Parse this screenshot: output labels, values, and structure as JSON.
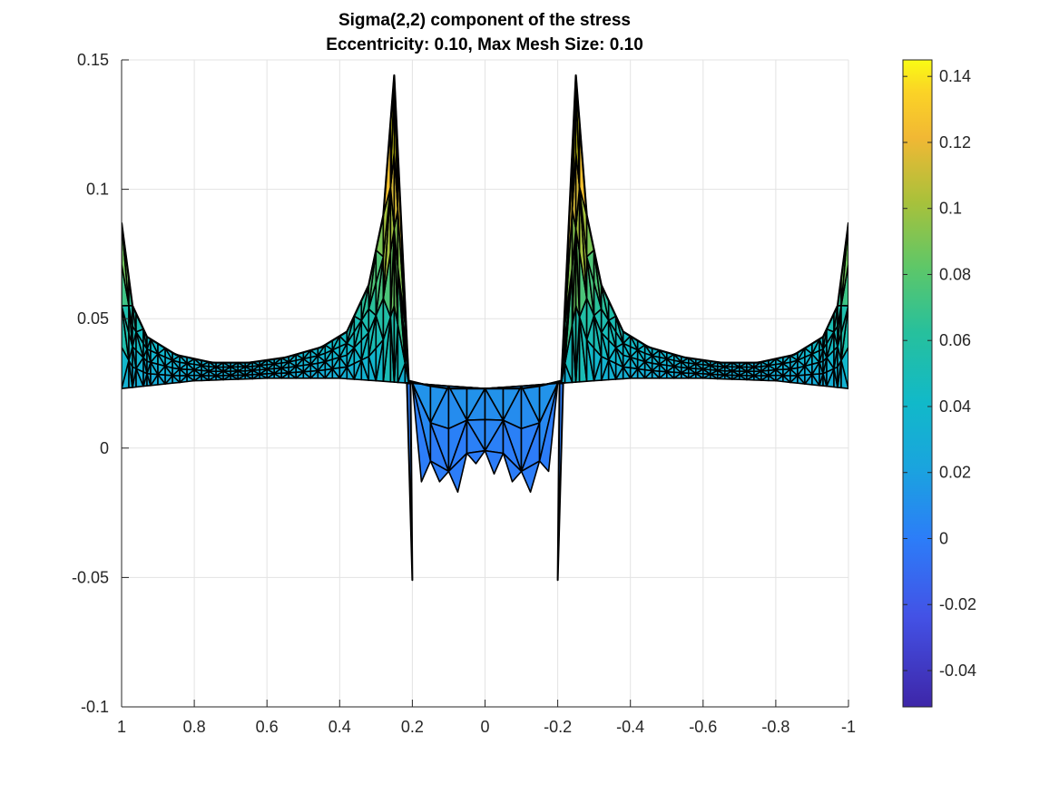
{
  "chart_data": {
    "type": "area",
    "title": "Sigma(2,2) component of the stress",
    "subtitle": "Eccentricity: 0.10, Max Mesh Size: 0.10",
    "xlabel": "",
    "ylabel": "",
    "xlim": [
      1,
      -1
    ],
    "ylim": [
      -0.1,
      0.15
    ],
    "x_reversed": true,
    "grid": true,
    "x_ticks": [
      1,
      0.8,
      0.6,
      0.4,
      0.2,
      0,
      -0.2,
      -0.4,
      -0.6,
      -0.8,
      -1
    ],
    "x_tick_labels": [
      "1",
      "0.8",
      "0.6",
      "0.4",
      "0.2",
      "0",
      "-0.2",
      "-0.4",
      "-0.6",
      "-0.8",
      "-1"
    ],
    "y_ticks": [
      0.15,
      0.1,
      0.05,
      0,
      -0.05,
      -0.1
    ],
    "y_tick_labels": [
      "0.15",
      "0.1",
      "0.05",
      "0",
      "-0.05",
      "-0.1"
    ],
    "colorbar": {
      "limits": [
        -0.051,
        0.145
      ],
      "colormap": "parula",
      "ticks": [
        0.14,
        0.12,
        0.1,
        0.08,
        0.06,
        0.04,
        0.02,
        0,
        -0.02,
        -0.04
      ],
      "tick_labels": [
        "0.14",
        "0.12",
        "0.1",
        "0.08",
        "0.06",
        "0.04",
        "0.02",
        "0",
        "-0.02",
        "-0.04"
      ],
      "placement": "right"
    },
    "series": [
      {
        "surface_profile": {
          "x": [
            1,
            0.97,
            0.93,
            0.85,
            0.75,
            0.65,
            0.55,
            0.45,
            0.38,
            0.32,
            0.28,
            0.25,
            0.21,
            0.15,
            0.1,
            0.05,
            0,
            -0.05,
            -0.1,
            -0.15,
            -0.21,
            -0.25,
            -0.28,
            -0.32,
            -0.38,
            -0.45,
            -0.55,
            -0.65,
            -0.75,
            -0.85,
            -0.93,
            -0.97,
            -1
          ],
          "y": [
            0.087,
            0.055,
            0.043,
            0.036,
            0.033,
            0.033,
            0.035,
            0.039,
            0.045,
            0.063,
            0.09,
            0.144,
            0.026,
            0.024,
            0.023,
            0.023,
            0.023,
            0.023,
            0.023,
            0.024,
            0.026,
            0.144,
            0.09,
            0.063,
            0.045,
            0.039,
            0.035,
            0.033,
            0.033,
            0.036,
            0.043,
            0.055,
            0.087
          ]
        },
        "base_profile": {
          "x": [
            1,
            0.8,
            0.6,
            0.4,
            0.2,
            0,
            -0.2,
            -0.4,
            -0.6,
            -0.8,
            -1
          ],
          "y": [
            0.023,
            0.026,
            0.027,
            0.027,
            0.025,
            0.023,
            0.025,
            0.027,
            0.027,
            0.026,
            0.023
          ]
        },
        "lower_lobe": {
          "x": [
            0.2,
            0.15,
            0.1,
            0.05,
            0,
            -0.05,
            -0.1,
            -0.15,
            -0.2
          ],
          "y": [
            0.025,
            -0.005,
            -0.009,
            -0.002,
            -0.001,
            -0.002,
            -0.009,
            -0.005,
            0.025
          ]
        },
        "spikes": [
          {
            "x_top": 0.21,
            "y_top": 0.025,
            "x_bottom": 0.2,
            "y_bottom": -0.051
          },
          {
            "x_top": -0.21,
            "y_top": 0.025,
            "x_bottom": -0.2,
            "y_bottom": -0.051
          }
        ],
        "peaks": [
          {
            "x": 0.25,
            "y": 0.144
          },
          {
            "x": -0.25,
            "y": 0.144
          },
          {
            "x": 1,
            "y": 0.087
          },
          {
            "x": -1,
            "y": 0.087
          }
        ]
      }
    ]
  }
}
